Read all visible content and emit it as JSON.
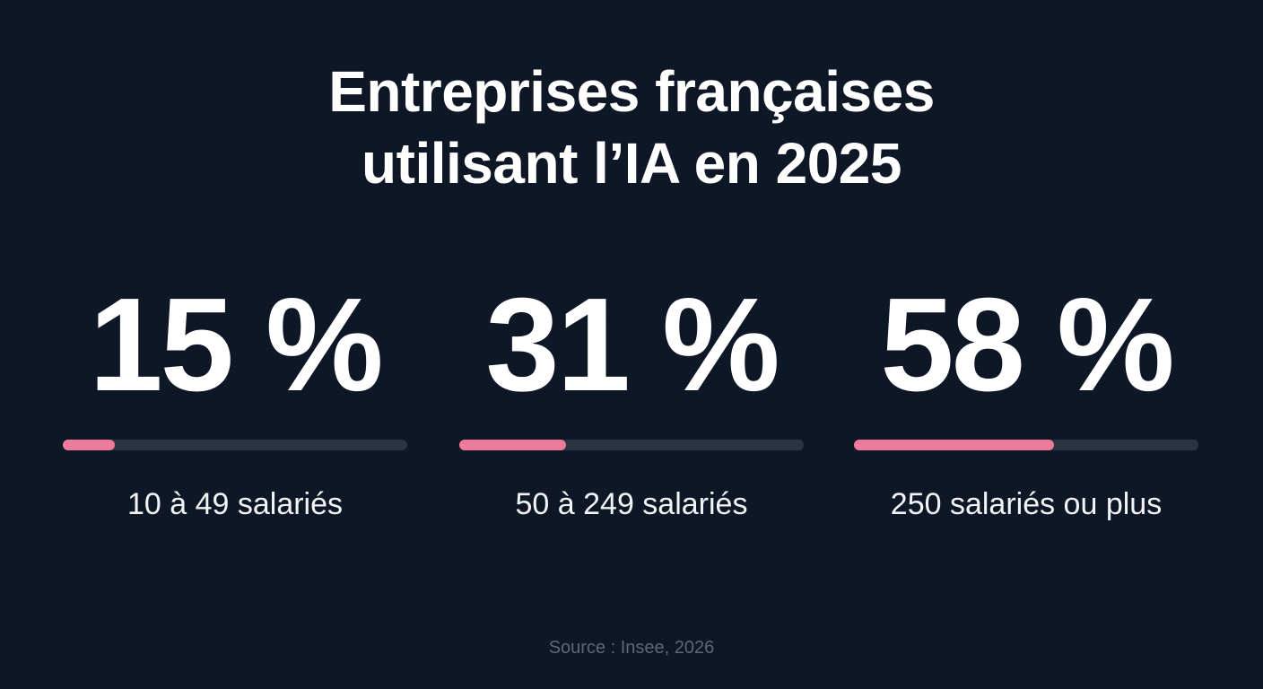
{
  "title": {
    "line1": "Entreprises françaises",
    "line2": "utilisant l’IA en 2025"
  },
  "chart_data": {
    "type": "bar",
    "title": "Entreprises françaises utilisant l’IA en 2025",
    "categories": [
      "10 à 49 salariés",
      "50 à 249 salariés",
      "250 salariés ou plus"
    ],
    "values": [
      15,
      31,
      58
    ],
    "value_labels": [
      "15 %",
      "31 %",
      "58 %"
    ],
    "ylim": [
      0,
      100
    ],
    "unit": "%"
  },
  "colors": {
    "background": "#0e1726",
    "bar_fill": "#ee7b9c",
    "bar_track": "#2a3444"
  },
  "source": "Source : Insee, 2026"
}
